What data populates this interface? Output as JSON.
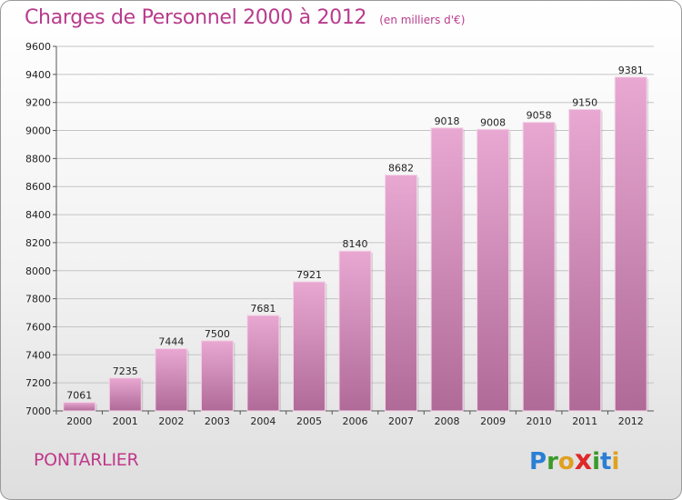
{
  "title": "Charges de Personnel 2000 à 2012",
  "subtitle": "(en milliers d'€)",
  "city": "PONTARLIER",
  "logo": {
    "letters": [
      "P",
      "r",
      "o",
      "x",
      "i",
      "t",
      "i"
    ],
    "colors": [
      "#2a7fd4",
      "#3a9a2a",
      "#e0a020",
      "#e02828",
      "#3a9a2a",
      "#2a7fd4",
      "#e0a020"
    ]
  },
  "colors": {
    "bar_top": "#e8a8d2",
    "bar_bottom": "#b06a98",
    "text_accent": "#b83c8c"
  },
  "chart_data": {
    "type": "bar",
    "categories": [
      "2000",
      "2001",
      "2002",
      "2003",
      "2004",
      "2005",
      "2006",
      "2007",
      "2008",
      "2009",
      "2010",
      "2011",
      "2012"
    ],
    "values": [
      7061,
      7235,
      7444,
      7500,
      7681,
      7921,
      8140,
      8682,
      9018,
      9008,
      9058,
      9150,
      9381
    ],
    "ylim": [
      7000,
      9600
    ],
    "yticks": [
      7000,
      7200,
      7400,
      7600,
      7800,
      8000,
      8200,
      8400,
      8600,
      8800,
      9000,
      9200,
      9400,
      9600
    ],
    "grid": true
  }
}
